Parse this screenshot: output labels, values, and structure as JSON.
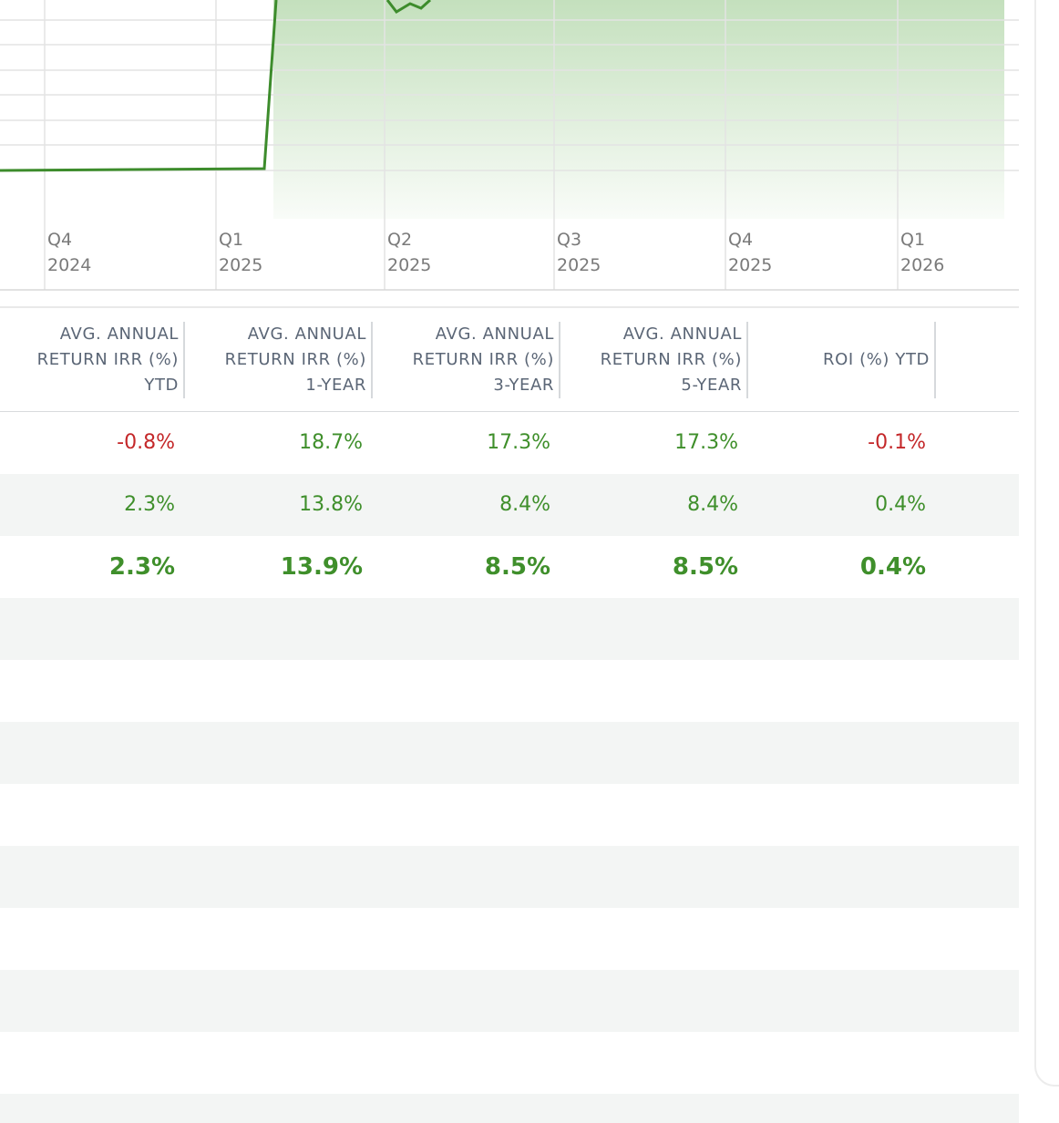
{
  "chart": {
    "x_labels": [
      {
        "quarter": "Q4",
        "year": "2024"
      },
      {
        "quarter": "Q1",
        "year": "2025"
      },
      {
        "quarter": "Q2",
        "year": "2025"
      },
      {
        "quarter": "Q3",
        "year": "2025"
      },
      {
        "quarter": "Q4",
        "year": "2025"
      },
      {
        "quarter": "Q1",
        "year": "2026"
      }
    ]
  },
  "table": {
    "headers": [
      [
        "AVG. ANNUAL",
        "RETURN IRR (%)",
        "YTD"
      ],
      [
        "AVG. ANNUAL",
        "RETURN IRR (%)",
        "1-YEAR"
      ],
      [
        "AVG. ANNUAL",
        "RETURN IRR (%)",
        "3-YEAR"
      ],
      [
        "AVG. ANNUAL",
        "RETURN IRR (%)",
        "5-YEAR"
      ],
      [
        "ROI (%) YTD"
      ]
    ],
    "rows": [
      {
        "cells": [
          "-0.8%",
          "18.7%",
          "17.3%",
          "17.3%",
          "-0.1%"
        ],
        "bold": false
      },
      {
        "cells": [
          "2.3%",
          "13.8%",
          "8.4%",
          "8.4%",
          "0.4%"
        ],
        "bold": false
      },
      {
        "cells": [
          "2.3%",
          "13.9%",
          "8.5%",
          "8.5%",
          "0.4%"
        ],
        "bold": true
      }
    ]
  }
}
